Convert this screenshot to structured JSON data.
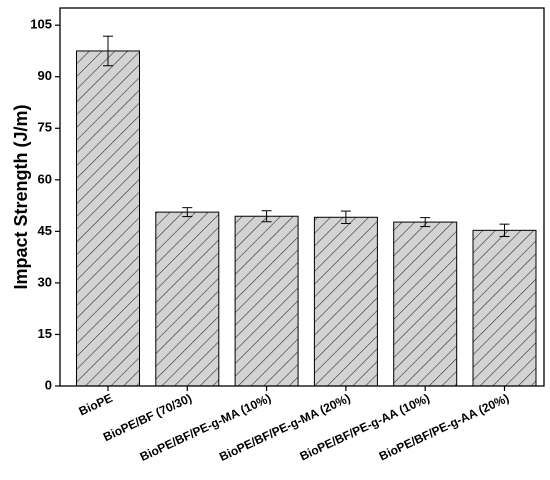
{
  "chart_data": {
    "type": "bar",
    "y_label": "Impact Strength (J/m)",
    "categories": [
      "BioPE",
      "BioPE/BF (70/30)",
      "BioPE/BF/PE-g-MA (10%)",
      "BioPE/BF/PE-g-MA (20%)",
      "BioPE/BF/PE-g-AA (10%)",
      "BioPE/BF/PE-g-AA (20%)"
    ],
    "values": [
      97.5,
      50.6,
      49.4,
      49.1,
      47.7,
      45.3
    ],
    "errors": [
      4.3,
      1.3,
      1.6,
      1.8,
      1.3,
      1.8
    ],
    "color": "#d3d3d3",
    "ylim": [
      0,
      110
    ],
    "yticks": [
      0,
      15,
      30,
      45,
      60,
      75,
      90,
      105
    ]
  }
}
